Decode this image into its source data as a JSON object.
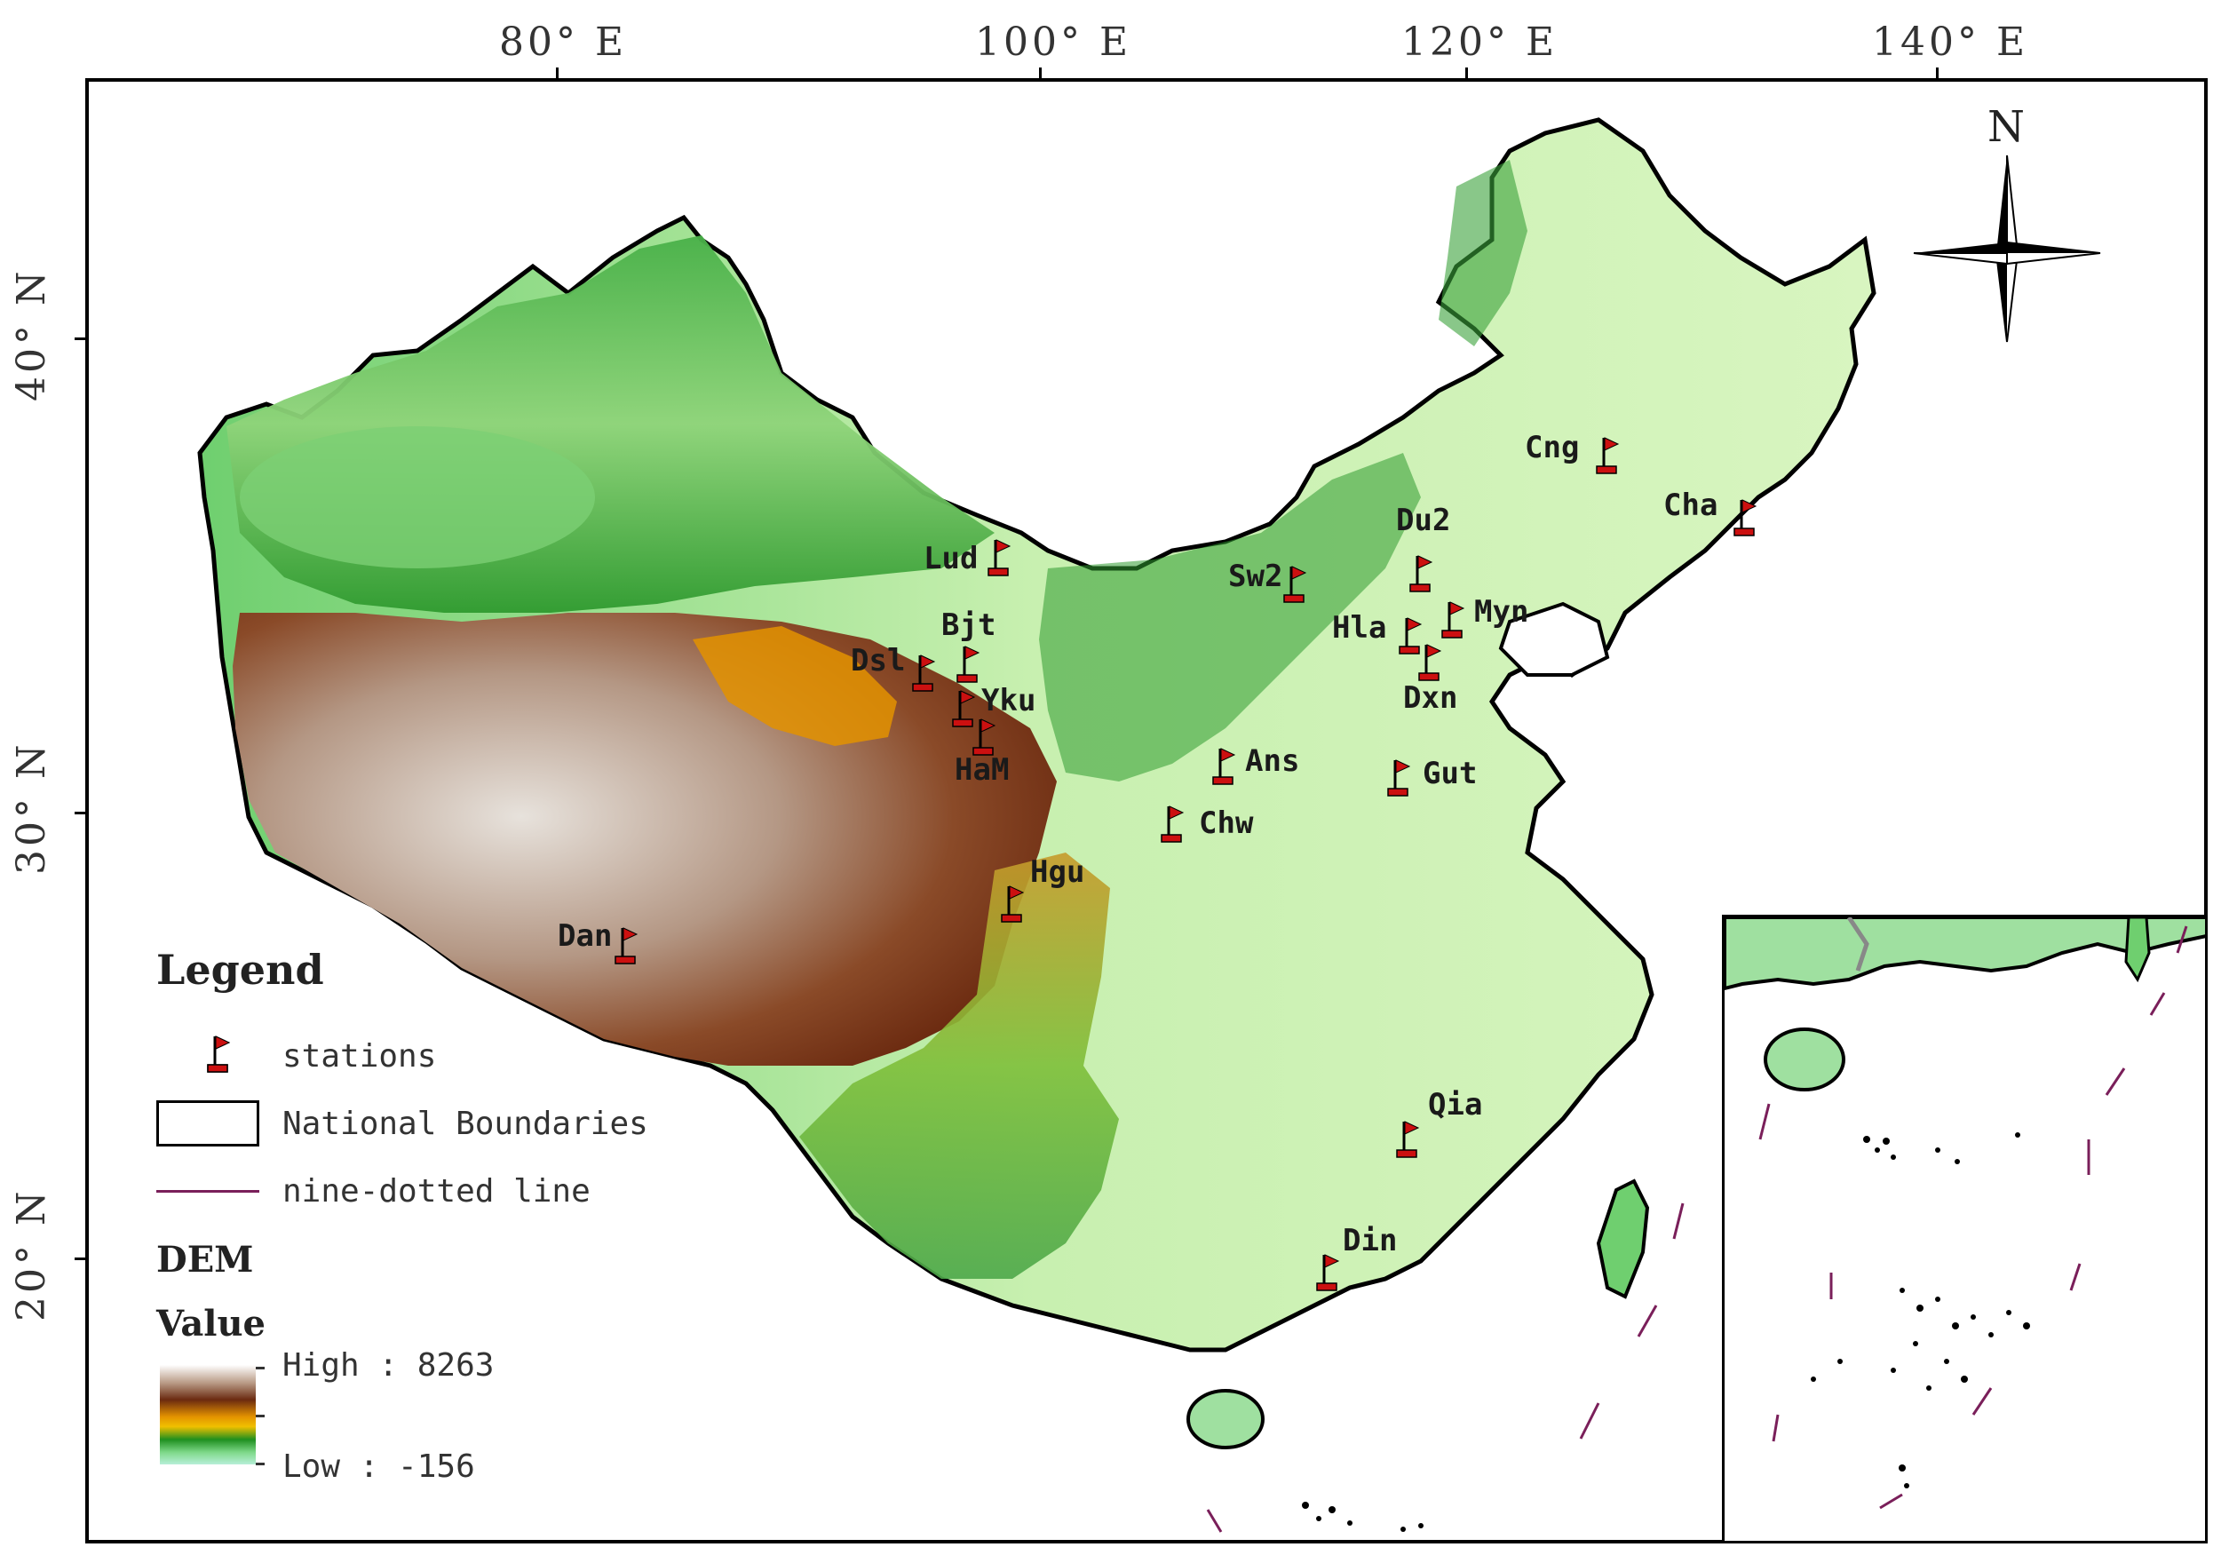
{
  "axes": {
    "top_ticks": [
      "80° E",
      "100° E",
      "120° E",
      "140° E"
    ],
    "left_ticks": [
      "40° N",
      "30° N",
      "20° N"
    ]
  },
  "legend": {
    "title": "Legend",
    "items": [
      {
        "label": "stations",
        "symbol": "flag-icon"
      },
      {
        "label": "National Boundaries",
        "symbol": "rectangle-outline"
      },
      {
        "label": "nine-dotted line",
        "symbol": "purple-line",
        "color": "#7a1f5a"
      }
    ],
    "dem_heading": "DEM",
    "value_heading": "Value",
    "high_label": "High : 8263",
    "low_label": "Low : -156"
  },
  "north_arrow": {
    "label": "N"
  },
  "stations": [
    {
      "id": "stn-lud",
      "label": "Lud"
    },
    {
      "id": "stn-bjt",
      "label": "Bjt"
    },
    {
      "id": "stn-dsl",
      "label": "Dsl"
    },
    {
      "id": "stn-yku",
      "label": "Yku"
    },
    {
      "id": "stn-ham",
      "label": "HaM"
    },
    {
      "id": "stn-hgu",
      "label": "Hgu"
    },
    {
      "id": "stn-dan",
      "label": "Dan"
    },
    {
      "id": "stn-sw2",
      "label": "Sw2"
    },
    {
      "id": "stn-du2",
      "label": "Du2"
    },
    {
      "id": "stn-hla",
      "label": "Hla"
    },
    {
      "id": "stn-myn",
      "label": "Myn"
    },
    {
      "id": "stn-dxn",
      "label": "Dxn"
    },
    {
      "id": "stn-ans",
      "label": "Ans"
    },
    {
      "id": "stn-gut",
      "label": "Gut"
    },
    {
      "id": "stn-chw",
      "label": "Chw"
    },
    {
      "id": "stn-cng",
      "label": "Cng"
    },
    {
      "id": "stn-cha",
      "label": "Cha"
    },
    {
      "id": "stn-qia",
      "label": "Qia"
    },
    {
      "id": "stn-din",
      "label": "Din"
    }
  ],
  "colors": {
    "dem_high": "#ffffff",
    "dem_mid_high": "#6b2a10",
    "dem_mid": "#e39200",
    "dem_low_mid": "#1f8f1f",
    "dem_low": "#b7efd8",
    "flag_red": "#cc1010",
    "nine_dotted_line": "#7a1f5a"
  }
}
